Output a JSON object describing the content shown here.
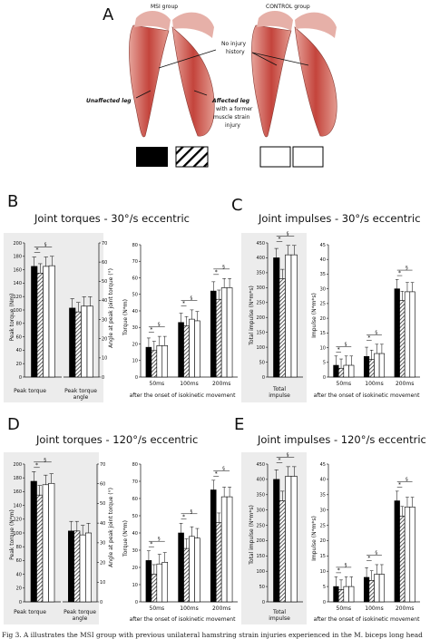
{
  "panel_a": {
    "letter": "A",
    "msi_label": "MSI group",
    "control_label": "CONTROL group",
    "no_injury": [
      "No injury",
      "history"
    ],
    "unaffected_leg": "Unaffected leg",
    "affected_leg": "Affected leg",
    "affected_note": [
      "with a former",
      "muscle strain",
      "injury"
    ]
  },
  "panel_letters": {
    "b": "B",
    "c": "C",
    "d": "D",
    "e": "E"
  },
  "titles": {
    "b": "Joint torques - 30°/s eccentric",
    "c": "Joint impulses - 30°/s eccentric",
    "d": "Joint torques - 120°/s eccentric",
    "e": "Joint impulses - 120°/s eccentric"
  },
  "axis_labels": {
    "peak_torque_nm": "Peak torque (Nm)",
    "peak_torque_nm2": "Peak torque (N*m)",
    "angle": "Angle at peak joint torque (°)",
    "torque_nm": "Torque (N*m)",
    "total_impulse": "Total impulse (N*m*s)",
    "impulse": "Impulse (N*m*s)"
  },
  "x_labels": {
    "peak_torque": "Peak torque",
    "peak_torque_angle": [
      "Peak torque",
      "angle"
    ],
    "windows": [
      "50ms",
      "100ms",
      "200ms"
    ],
    "total_impulse": [
      "Total",
      "impulse"
    ],
    "after_onset": "after the onset of isokinetic movement"
  },
  "significance": {
    "star": "*",
    "section": "§"
  },
  "caption": "Fig 3.  A illustrates the MSI group with previous unilateral hamstring strain injuries experienced in the M. biceps long head",
  "colors": {
    "bg_gray": "#ececec",
    "black": "#000000",
    "white": "#ffffff",
    "muscle": "#c8524a"
  },
  "chart_data": [
    {
      "id": "B-left",
      "type": "bar",
      "categories": [
        "Peak torque"
      ],
      "series_groups": [
        "Unaffected",
        "Affected",
        "Control",
        "Control"
      ],
      "values": [
        [
          165,
          155,
          165,
          166
        ]
      ],
      "ylim": [
        0,
        200
      ],
      "ylabel": "Peak torque (Nm)",
      "yticks": [
        0,
        20,
        40,
        60,
        80,
        100,
        120,
        140,
        160,
        180,
        200
      ]
    },
    {
      "id": "B-angle",
      "type": "bar",
      "categories": [
        "Peak torque angle"
      ],
      "values": [
        [
          36,
          34,
          37,
          37
        ]
      ],
      "ylim": [
        0,
        70
      ],
      "ylabel": "Angle at peak joint torque (°)",
      "yticks": [
        0,
        10,
        20,
        30,
        40,
        50,
        60,
        70
      ]
    },
    {
      "id": "B-right",
      "type": "bar",
      "categories": [
        "50ms",
        "100ms",
        "200ms"
      ],
      "values": [
        [
          18,
          16,
          19,
          19
        ],
        [
          33,
          31,
          35,
          34
        ],
        [
          52,
          47,
          54,
          54
        ]
      ],
      "ylim": [
        0,
        80
      ],
      "ylabel": "Torque (N*m)",
      "yticks": [
        0,
        10,
        20,
        30,
        40,
        50,
        60,
        70,
        80
      ]
    },
    {
      "id": "C-left",
      "type": "bar",
      "categories": [
        "Total impulse"
      ],
      "values": [
        [
          400,
          330,
          410,
          410
        ]
      ],
      "ylim": [
        0,
        450
      ],
      "ylabel": "Total impulse (N*m*s)",
      "yticks": [
        0,
        50,
        100,
        150,
        200,
        250,
        300,
        350,
        400,
        450
      ]
    },
    {
      "id": "C-right",
      "type": "bar",
      "categories": [
        "50ms",
        "100ms",
        "200ms"
      ],
      "values": [
        [
          4,
          3,
          4,
          4
        ],
        [
          7,
          6,
          8,
          8
        ],
        [
          30,
          26,
          29,
          29
        ]
      ],
      "ylim": [
        0,
        45
      ],
      "ylabel": "Impulse (N*m*s)",
      "yticks": [
        0,
        5,
        10,
        15,
        20,
        25,
        30,
        35,
        40,
        45
      ]
    },
    {
      "id": "D-left",
      "type": "bar",
      "categories": [
        "Peak torque"
      ],
      "values": [
        [
          175,
          155,
          170,
          172
        ]
      ],
      "ylim": [
        0,
        200
      ],
      "ylabel": "Peak torque (N*m)",
      "yticks": [
        0,
        20,
        40,
        60,
        80,
        100,
        120,
        140,
        160,
        180,
        200
      ]
    },
    {
      "id": "D-angle",
      "type": "bar",
      "categories": [
        "Peak torque angle"
      ],
      "values": [
        [
          36,
          36,
          34,
          35
        ]
      ],
      "ylim": [
        0,
        70
      ],
      "ylabel": "Angle at peak joint torque (°)",
      "yticks": [
        0,
        10,
        20,
        30,
        40,
        50,
        60,
        70
      ]
    },
    {
      "id": "D-right",
      "type": "bar",
      "categories": [
        "50ms",
        "100ms",
        "200ms"
      ],
      "values": [
        [
          24,
          16,
          22,
          23
        ],
        [
          40,
          31,
          38,
          37
        ],
        [
          65,
          46,
          61,
          61
        ]
      ],
      "ylim": [
        0,
        80
      ],
      "ylabel": "Torque (N*m)",
      "yticks": [
        0,
        10,
        20,
        30,
        40,
        50,
        60,
        70,
        80
      ]
    },
    {
      "id": "E-left",
      "type": "bar",
      "categories": [
        "Total impulse"
      ],
      "values": [
        [
          400,
          330,
          410,
          410
        ]
      ],
      "ylim": [
        0,
        450
      ],
      "ylabel": "Total impulse (N*m*s)",
      "yticks": [
        0,
        50,
        100,
        150,
        200,
        250,
        300,
        350,
        400,
        450
      ]
    },
    {
      "id": "E-right",
      "type": "bar",
      "categories": [
        "50ms",
        "100ms",
        "200ms"
      ],
      "values": [
        [
          5,
          4,
          5,
          5
        ],
        [
          8,
          7,
          9,
          9
        ],
        [
          33,
          28,
          31,
          31
        ]
      ],
      "ylim": [
        0,
        45
      ],
      "ylabel": "Impulse (N*m*s)",
      "yticks": [
        0,
        5,
        10,
        15,
        20,
        25,
        30,
        35,
        40,
        45
      ]
    }
  ]
}
